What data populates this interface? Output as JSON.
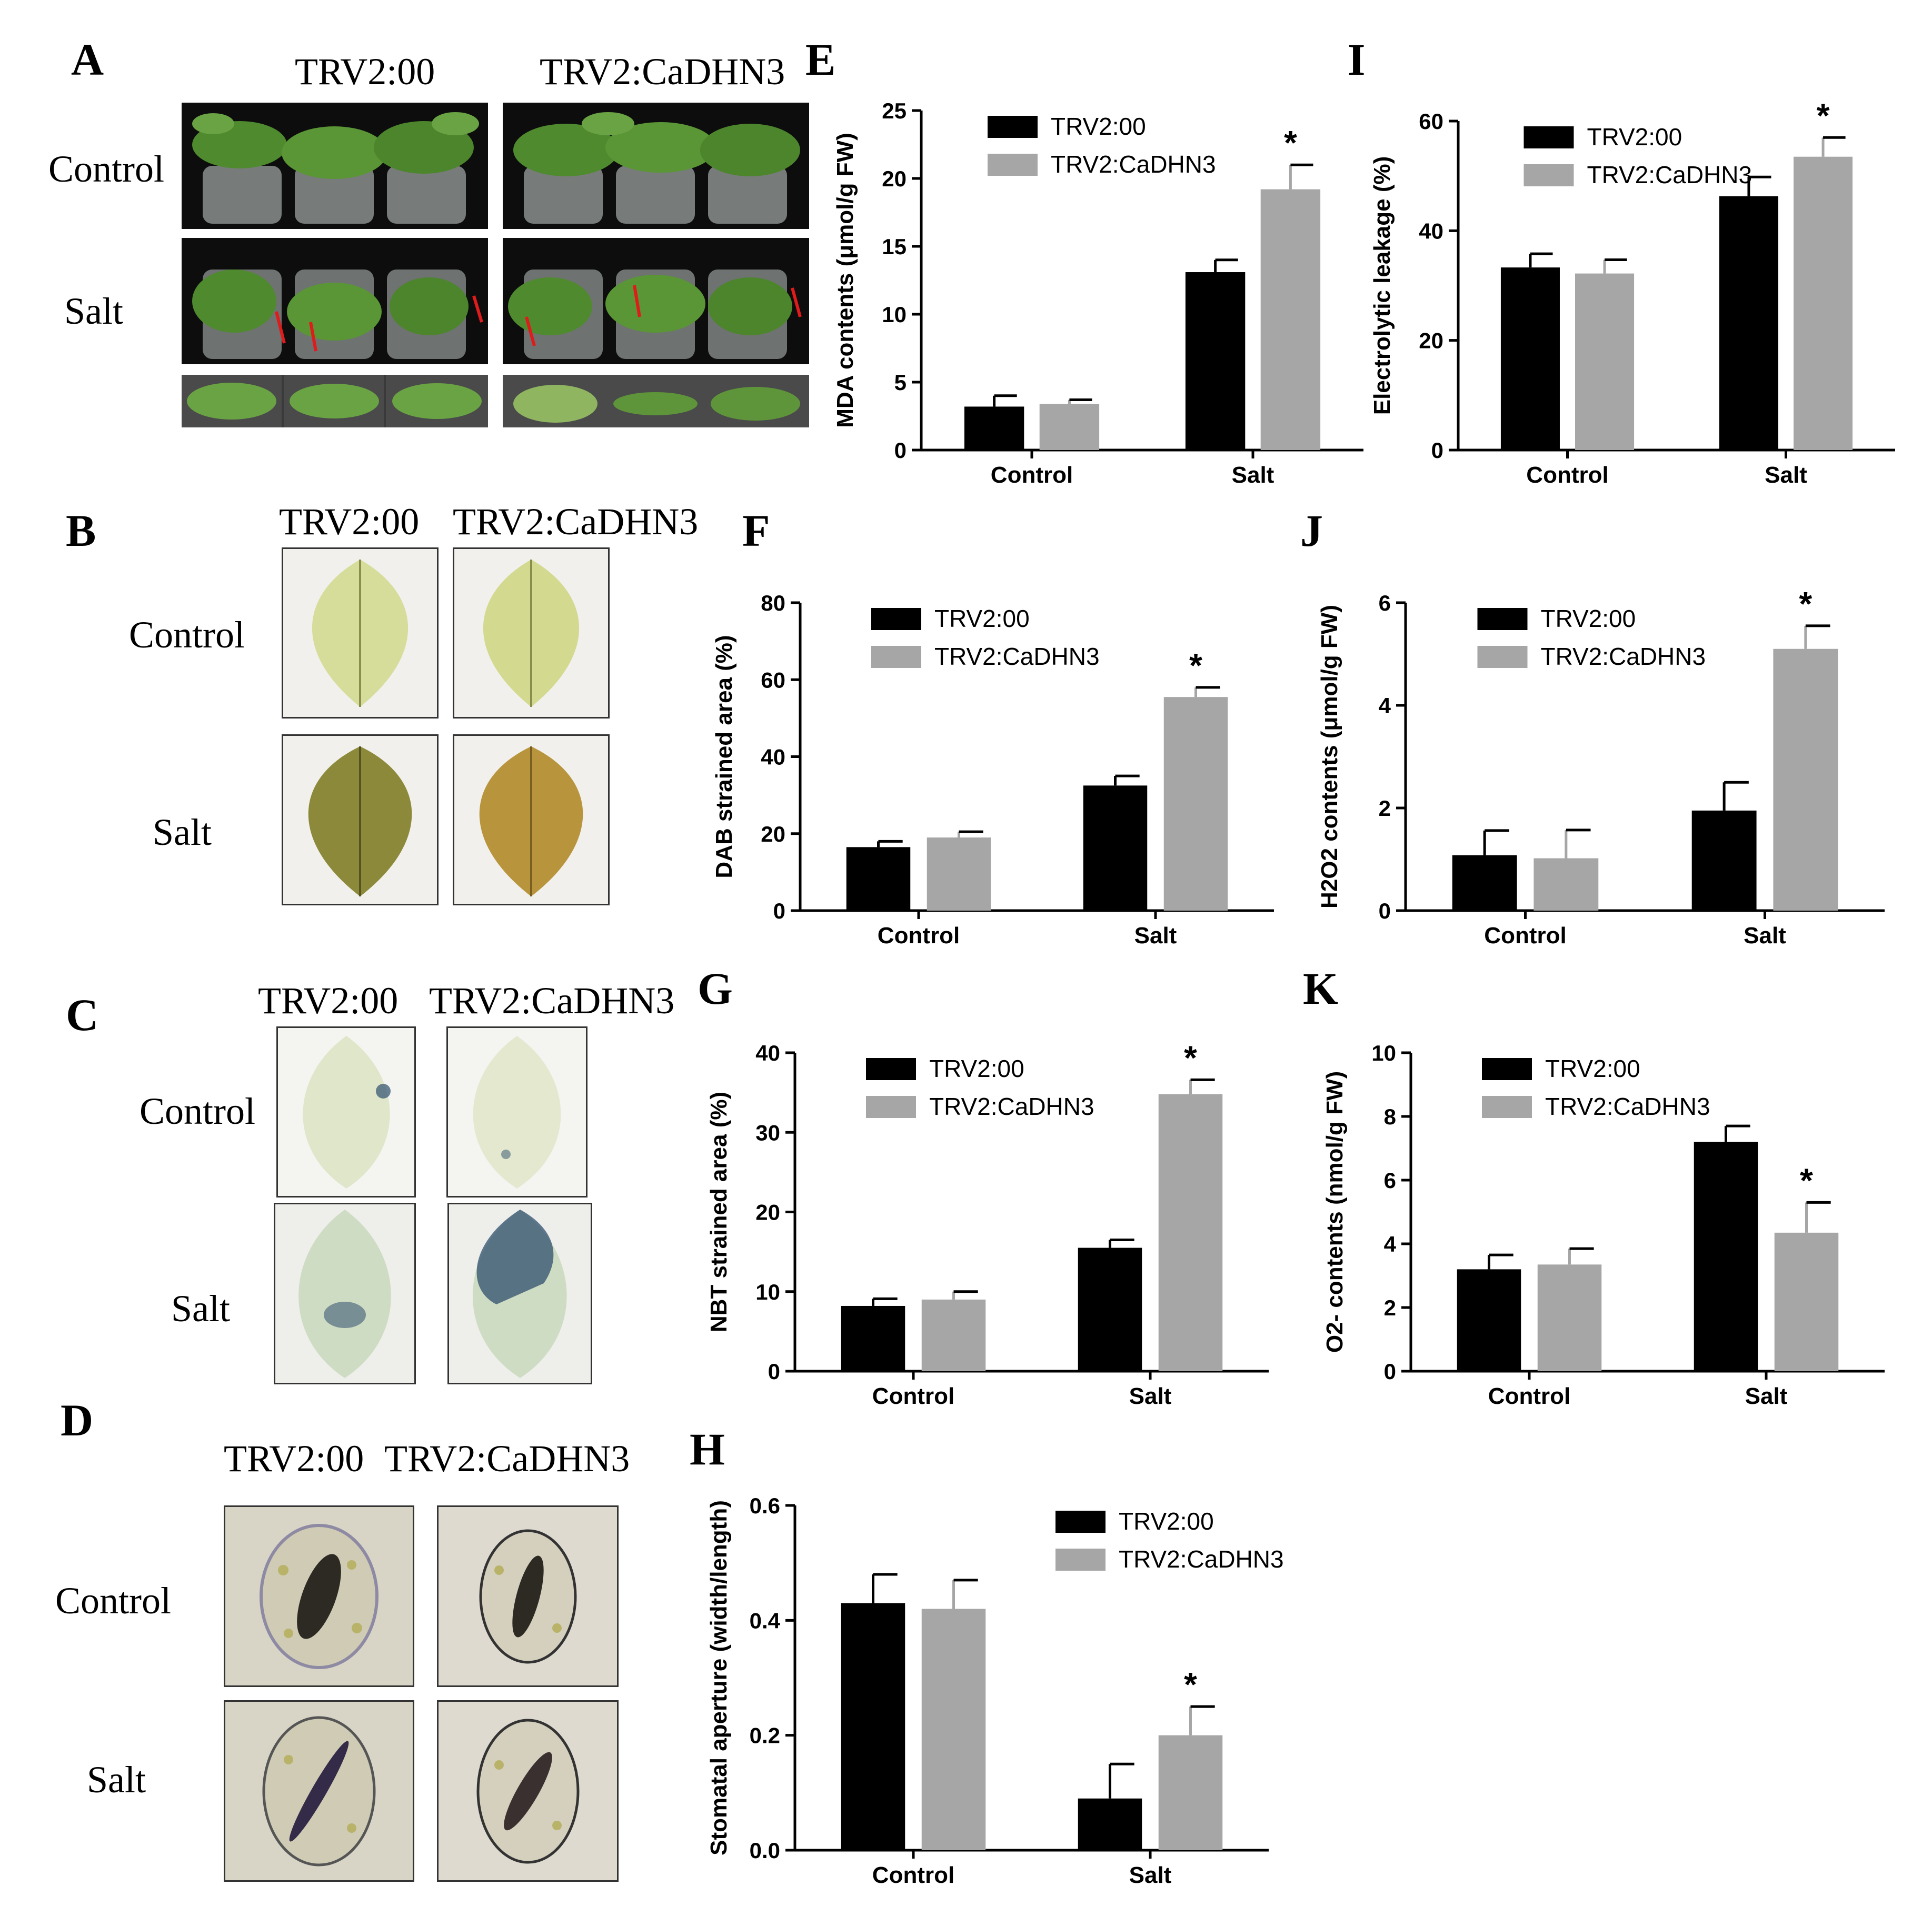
{
  "panel_letters": {
    "A": "A",
    "B": "B",
    "C": "C",
    "D": "D",
    "E": "E",
    "F": "F",
    "G": "G",
    "H": "H",
    "I": "I",
    "J": "J",
    "K": "K"
  },
  "photo_labels": {
    "genotype_a": "TRV2:00",
    "genotype_b": "TRV2:CaDHN3",
    "control": "Control",
    "salt": "Salt"
  },
  "colors": {
    "trv2_00": "#000000",
    "trv2_cadhn3": "#a6a6a6",
    "panel_bg_dark": "#111111",
    "leaf_green": "#5c8f3a",
    "leaf_pale": "#d9dfa8",
    "leaf_salt": "#8c8a3a",
    "leaf_salt_b": "#b8953c",
    "nbt_leaf": "#dfe6c9",
    "nbt_stain": "#2e4f6e",
    "cell_bg": "#d8d4c6",
    "arrow": "#e01b1b"
  },
  "chart_data": [
    {
      "panel": "E",
      "type": "bar",
      "categories": [
        "Control",
        "Salt"
      ],
      "series": [
        {
          "name": "TRV2:00",
          "values": [
            3.2,
            13.1
          ],
          "errors": [
            0.8,
            0.9
          ]
        },
        {
          "name": "TRV2:CaDHN3",
          "values": [
            3.4,
            19.2
          ],
          "errors": [
            0.3,
            1.8
          ]
        }
      ],
      "ylabel": "MDA contents (μmol/g FW)",
      "ylim": [
        0,
        25
      ],
      "yticks": [
        "0",
        "5",
        "10",
        "15",
        "20",
        "25"
      ],
      "significance": [
        {
          "category": "Salt",
          "series": "TRV2:CaDHN3",
          "mark": "*"
        }
      ],
      "legend": "top-left",
      "grid": false
    },
    {
      "panel": "F",
      "type": "bar",
      "categories": [
        "Control",
        "Salt"
      ],
      "series": [
        {
          "name": "TRV2:00",
          "values": [
            16.5,
            32.5
          ],
          "errors": [
            1.5,
            2.5
          ]
        },
        {
          "name": "TRV2:CaDHN3",
          "values": [
            19,
            55.5
          ],
          "errors": [
            1.5,
            2.5
          ]
        }
      ],
      "ylabel": "DAB strained area (%)",
      "ylim": [
        0,
        80
      ],
      "yticks": [
        "0",
        "20",
        "40",
        "60",
        "80"
      ],
      "significance": [
        {
          "category": "Salt",
          "series": "TRV2:CaDHN3",
          "mark": "*"
        }
      ],
      "legend": "top-left",
      "grid": false
    },
    {
      "panel": "G",
      "type": "bar",
      "categories": [
        "Control",
        "Salt"
      ],
      "series": [
        {
          "name": "TRV2:00",
          "values": [
            8.2,
            15.5
          ],
          "errors": [
            0.9,
            1.0
          ]
        },
        {
          "name": "TRV2:CaDHN3",
          "values": [
            9.0,
            34.8
          ],
          "errors": [
            1.0,
            1.8
          ]
        }
      ],
      "ylabel": "NBT strained area (%)",
      "ylim": [
        0,
        40
      ],
      "yticks": [
        "0",
        "10",
        "20",
        "30",
        "40"
      ],
      "significance": [
        {
          "category": "Salt",
          "series": "TRV2:CaDHN3",
          "mark": "*"
        }
      ],
      "legend": "top-left",
      "grid": false
    },
    {
      "panel": "H",
      "type": "bar",
      "categories": [
        "Control",
        "Salt"
      ],
      "series": [
        {
          "name": "TRV2:00",
          "values": [
            0.43,
            0.09
          ],
          "errors": [
            0.05,
            0.06
          ]
        },
        {
          "name": "TRV2:CaDHN3",
          "values": [
            0.42,
            0.2
          ],
          "errors": [
            0.05,
            0.05
          ]
        }
      ],
      "ylabel": "Stomatal aperture (width/length)",
      "ylim": [
        0,
        0.6
      ],
      "yticks": [
        "0.0",
        "0.2",
        "0.4",
        "0.6"
      ],
      "significance": [
        {
          "category": "Salt",
          "series": "TRV2:CaDHN3",
          "mark": "*"
        }
      ],
      "legend": "top-right",
      "grid": false
    },
    {
      "panel": "I",
      "type": "bar",
      "categories": [
        "Control",
        "Salt"
      ],
      "series": [
        {
          "name": "TRV2:00",
          "values": [
            33.3,
            46.3
          ],
          "errors": [
            2.5,
            3.5
          ]
        },
        {
          "name": "TRV2:CaDHN3",
          "values": [
            32.2,
            53.5
          ],
          "errors": [
            2.5,
            3.5
          ]
        }
      ],
      "ylabel": "Electrolytic leakage (%)",
      "ylim": [
        0,
        60
      ],
      "yticks": [
        "0",
        "20",
        "40",
        "60"
      ],
      "significance": [
        {
          "category": "Salt",
          "series": "TRV2:CaDHN3",
          "mark": "*"
        }
      ],
      "legend": "top-left",
      "grid": false
    },
    {
      "panel": "J",
      "type": "bar",
      "categories": [
        "Control",
        "Salt"
      ],
      "series": [
        {
          "name": "TRV2:00",
          "values": [
            1.08,
            1.95
          ],
          "errors": [
            0.48,
            0.55
          ]
        },
        {
          "name": "TRV2:CaDHN3",
          "values": [
            1.02,
            5.1
          ],
          "errors": [
            0.55,
            0.45
          ]
        }
      ],
      "ylabel": "H2O2 contents (μmol/g FW)",
      "ylim": [
        0,
        6
      ],
      "yticks": [
        "0",
        "2",
        "4",
        "6"
      ],
      "significance": [
        {
          "category": "Salt",
          "series": "TRV2:CaDHN3",
          "mark": "*"
        }
      ],
      "legend": "top-left",
      "grid": false
    },
    {
      "panel": "K",
      "type": "bar",
      "categories": [
        "Control",
        "Salt"
      ],
      "series": [
        {
          "name": "TRV2:00",
          "values": [
            3.2,
            7.2
          ],
          "errors": [
            0.45,
            0.5
          ]
        },
        {
          "name": "TRV2:CaDHN3",
          "values": [
            3.35,
            4.35
          ],
          "errors": [
            0.5,
            0.95
          ]
        }
      ],
      "ylabel": "O2- contents (nmol/g FW)",
      "ylim": [
        0,
        10
      ],
      "yticks": [
        "0",
        "2",
        "4",
        "6",
        "8",
        "10"
      ],
      "significance": [
        {
          "category": "Salt",
          "series": "TRV2:CaDHN3",
          "mark": "*"
        }
      ],
      "legend": "top-left",
      "grid": false
    }
  ]
}
